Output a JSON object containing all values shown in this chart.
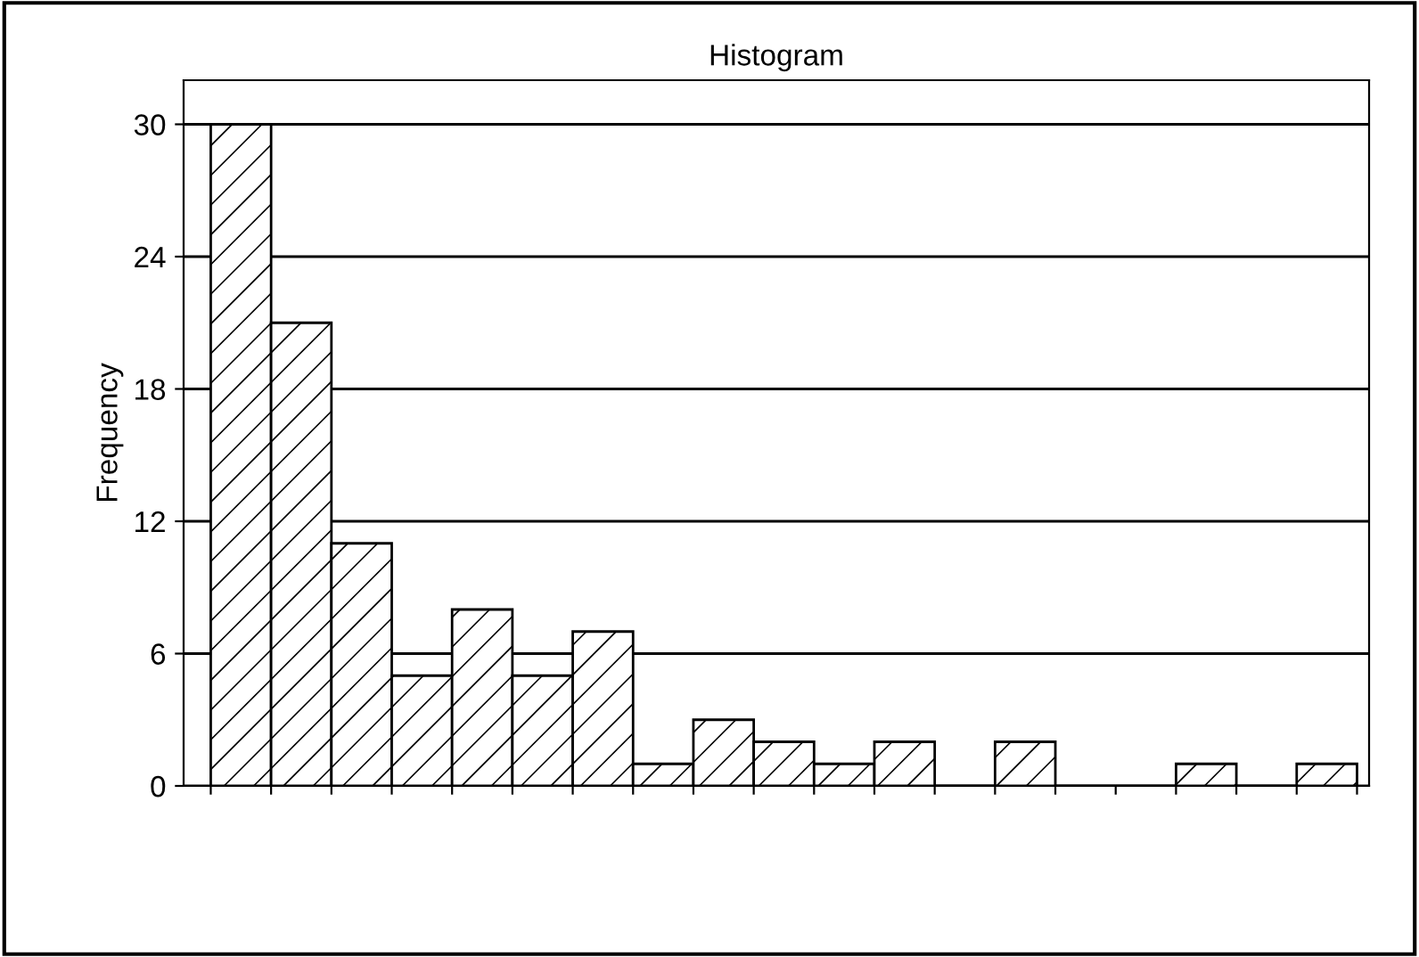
{
  "chart_data": {
    "type": "bar",
    "title": "Histogram",
    "ylabel": "Frequency",
    "categories": [
      null,
      null,
      null,
      null,
      null,
      null,
      null,
      null,
      null,
      null,
      null,
      null,
      null,
      null,
      null,
      null,
      null,
      null,
      null
    ],
    "values": [
      30,
      21,
      11,
      5,
      8,
      5,
      7,
      1,
      3,
      2,
      1,
      2,
      0,
      2,
      0,
      0,
      1,
      0,
      1
    ],
    "color": "#000000",
    "ylim": [
      0,
      32
    ],
    "yticks": [
      0,
      6,
      12,
      18,
      24,
      30
    ],
    "grid": "y"
  }
}
